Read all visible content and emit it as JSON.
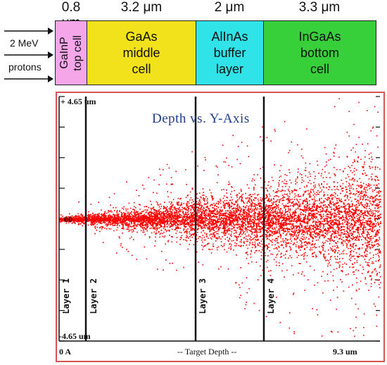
{
  "thickness": {
    "top": "0.8 μm",
    "middle": "3.2 μm",
    "buffer": "2 μm",
    "bottom": "3.3 μm"
  },
  "beam": {
    "energy": "2 MeV",
    "particle": "protons"
  },
  "layers": {
    "top": [
      "GaInP",
      "top cell"
    ],
    "middle": [
      "GaAs",
      "middle",
      "cell"
    ],
    "buffer": [
      "AlInAs",
      "buffer",
      "layer"
    ],
    "bottom": [
      "InGaAs",
      "bottom",
      "cell"
    ]
  },
  "colors": {
    "top": "#f5a6e8",
    "middle": "#f2e21c",
    "buffer": "#2fe3e8",
    "bottom": "#37d03a",
    "tracks": "#ff0000",
    "frame": "#d9534f",
    "title": "#1f3f8f"
  },
  "plot": {
    "title": "Depth vs. Y-Axis",
    "y_top": "+ 4.65 um",
    "y_zero": "00",
    "y_bottom": "-4.65 um",
    "x_start": "0 A",
    "x_label": "-- Target Depth --",
    "x_end": "9.3 um",
    "layer_labels": [
      "Layer 1",
      "Layer 2",
      "Layer 3",
      "Layer 4"
    ]
  },
  "chart_data": {
    "type": "scatter",
    "title": "Depth vs. Y-Axis",
    "xlabel": "-- Target Depth --",
    "x_range_um": [
      0,
      9.3
    ],
    "y_range_um": [
      -4.65,
      4.65
    ],
    "layer_boundaries_um": [
      0.8,
      4.0,
      6.0
    ],
    "layers": [
      "Layer 1",
      "Layer 2",
      "Layer 3",
      "Layer 4"
    ],
    "spread_profile": {
      "depth_um": [
        0.0,
        0.8,
        2.0,
        3.0,
        4.0,
        5.0,
        6.0,
        7.0,
        8.0,
        9.3
      ],
      "half_width_um": [
        0.1,
        0.2,
        0.35,
        0.55,
        0.8,
        1.0,
        1.25,
        1.5,
        1.8,
        2.4
      ]
    }
  }
}
